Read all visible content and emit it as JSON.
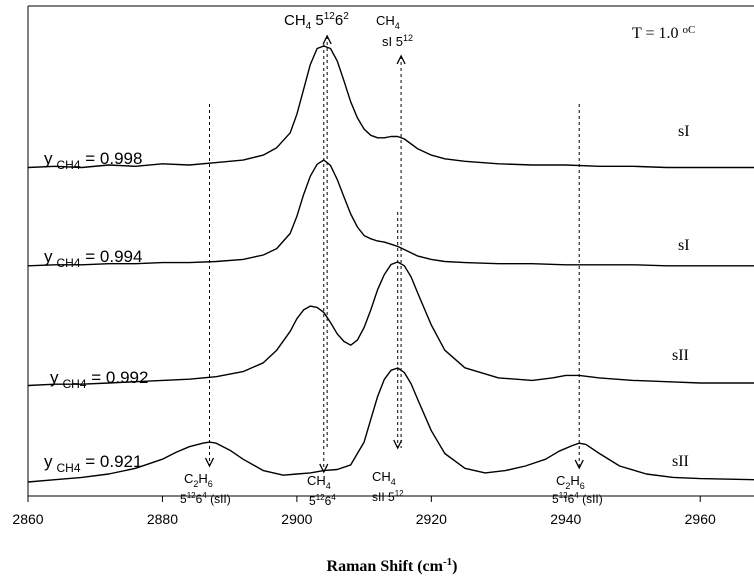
{
  "chart_data": {
    "type": "line",
    "xlabel": "Raman Shift (cm",
    "xlabel_sup": "-1",
    "xlabel_close": ")",
    "x_ticks": [
      "2860",
      "2880",
      "2900",
      "2920",
      "2940",
      "2960"
    ],
    "xlim": [
      2860,
      2968
    ],
    "temperature_label": "T = 1.0 ",
    "temperature_unit": "oC",
    "series": [
      {
        "label_prefix": "y",
        "label_sub": "CH4",
        "label_value": " = 0.998",
        "structure": "sI",
        "x": [
          2860,
          2864,
          2868,
          2872,
          2876,
          2880,
          2884,
          2888,
          2892,
          2895,
          2897,
          2899,
          2900,
          2901,
          2902,
          2903,
          2904,
          2905,
          2906,
          2907,
          2908,
          2909,
          2910,
          2911,
          2912,
          2913,
          2914,
          2915,
          2916,
          2917,
          2918,
          2920,
          2922,
          2925,
          2930,
          2935,
          2940,
          2945,
          2950,
          2955,
          2960,
          2968
        ],
        "y": [
          0.02,
          0.03,
          0.02,
          0.04,
          0.03,
          0.05,
          0.04,
          0.06,
          0.08,
          0.12,
          0.18,
          0.3,
          0.45,
          0.65,
          0.85,
          0.98,
          1.0,
          0.98,
          0.88,
          0.72,
          0.55,
          0.42,
          0.33,
          0.28,
          0.26,
          0.26,
          0.27,
          0.27,
          0.25,
          0.21,
          0.17,
          0.12,
          0.09,
          0.07,
          0.05,
          0.04,
          0.04,
          0.03,
          0.03,
          0.02,
          0.02,
          0.02
        ]
      },
      {
        "label_prefix": "y",
        "label_sub": "CH4",
        "label_value": " = 0.994",
        "structure": "sI",
        "x": [
          2860,
          2864,
          2868,
          2872,
          2876,
          2880,
          2884,
          2888,
          2892,
          2895,
          2897,
          2899,
          2900,
          2901,
          2902,
          2903,
          2904,
          2905,
          2906,
          2907,
          2908,
          2909,
          2910,
          2911,
          2912,
          2913,
          2914,
          2915,
          2916,
          2917,
          2918,
          2920,
          2922,
          2925,
          2930,
          2935,
          2940,
          2945,
          2950,
          2955,
          2960,
          2968
        ],
        "y": [
          0.02,
          0.03,
          0.03,
          0.04,
          0.04,
          0.05,
          0.05,
          0.06,
          0.08,
          0.12,
          0.18,
          0.32,
          0.48,
          0.68,
          0.85,
          0.96,
          1.0,
          0.95,
          0.82,
          0.66,
          0.5,
          0.38,
          0.3,
          0.27,
          0.25,
          0.24,
          0.22,
          0.2,
          0.17,
          0.14,
          0.11,
          0.08,
          0.06,
          0.05,
          0.04,
          0.04,
          0.03,
          0.03,
          0.03,
          0.02,
          0.02,
          0.02
        ]
      },
      {
        "label_prefix": "y",
        "label_sub": "CH4",
        "label_value": " = 0.992",
        "structure": "sII",
        "x": [
          2860,
          2864,
          2868,
          2872,
          2876,
          2880,
          2884,
          2888,
          2892,
          2895,
          2897,
          2899,
          2900,
          2901,
          2902,
          2903,
          2904,
          2905,
          2906,
          2907,
          2908,
          2909,
          2910,
          2911,
          2912,
          2913,
          2914,
          2915,
          2916,
          2917,
          2918,
          2920,
          2922,
          2925,
          2930,
          2935,
          2938,
          2940,
          2942,
          2945,
          2950,
          2955,
          2960,
          2968
        ],
        "y": [
          0.02,
          0.03,
          0.03,
          0.04,
          0.05,
          0.06,
          0.07,
          0.09,
          0.13,
          0.2,
          0.3,
          0.45,
          0.55,
          0.62,
          0.65,
          0.64,
          0.6,
          0.52,
          0.43,
          0.37,
          0.34,
          0.38,
          0.48,
          0.62,
          0.78,
          0.9,
          0.98,
          1.0,
          0.97,
          0.88,
          0.75,
          0.5,
          0.3,
          0.16,
          0.08,
          0.06,
          0.08,
          0.1,
          0.1,
          0.08,
          0.06,
          0.05,
          0.04,
          0.04
        ]
      },
      {
        "label_prefix": "y",
        "label_sub": "CH4",
        "label_value": " = 0.921",
        "structure": "sII",
        "x": [
          2860,
          2864,
          2868,
          2872,
          2876,
          2880,
          2882,
          2884,
          2886,
          2887,
          2888,
          2890,
          2892,
          2895,
          2898,
          2900,
          2902,
          2904,
          2906,
          2908,
          2910,
          2911,
          2912,
          2913,
          2914,
          2915,
          2916,
          2917,
          2918,
          2920,
          2922,
          2925,
          2928,
          2931,
          2934,
          2937,
          2939,
          2941,
          2942,
          2943,
          2945,
          2948,
          2952,
          2956,
          2960,
          2968
        ],
        "y": [
          0.0,
          0.02,
          0.04,
          0.07,
          0.12,
          0.2,
          0.26,
          0.31,
          0.34,
          0.35,
          0.34,
          0.28,
          0.2,
          0.1,
          0.06,
          0.07,
          0.08,
          0.1,
          0.11,
          0.15,
          0.35,
          0.55,
          0.75,
          0.9,
          0.98,
          1.0,
          0.96,
          0.86,
          0.72,
          0.45,
          0.25,
          0.12,
          0.08,
          0.1,
          0.14,
          0.2,
          0.27,
          0.32,
          0.34,
          0.33,
          0.25,
          0.14,
          0.07,
          0.04,
          0.03,
          0.02
        ]
      }
    ],
    "annotations": [
      {
        "line1": "CH",
        "line1_sub": "4",
        "line1_rest": " 5",
        "sup1": "12",
        "mid": "6",
        "sup2": "2",
        "line2": "",
        "line2_sup": "",
        "line2_rest": "",
        "arrow": "up",
        "line_x": 2904.5
      },
      {
        "line1": "CH",
        "line1_sub": "4",
        "line1_rest": "",
        "line2": "sI 5",
        "line2_sup": "12",
        "line2_rest": "",
        "arrow": "up",
        "line_x": 2915.5
      },
      {
        "line1": "C",
        "line1_sub": "2",
        "line1_rest": "H",
        "line1_sub2": "6",
        "line2": "5",
        "line2_sup": "12",
        "line2_mid": "6",
        "line2_sup2": "4",
        "line2_rest": " (sII)",
        "arrow": "down",
        "line_x": 2887
      },
      {
        "line1": "CH",
        "line1_sub": "4",
        "line1_rest": "",
        "line2": "5",
        "line2_sup": "12",
        "line2_mid": "6",
        "line2_sup2": "4",
        "line2_rest": "",
        "arrow": "down",
        "line_x": 2904
      },
      {
        "line1": "CH",
        "line1_sub": "4",
        "line1_rest": "",
        "line2": "sII 5",
        "line2_sup": "12",
        "line2_mid": "",
        "line2_sup2": "",
        "line2_rest": "",
        "arrow": "down",
        "line_x": 2915
      },
      {
        "line1": "C",
        "line1_sub": "2",
        "line1_rest": "H",
        "line1_sub2": "6",
        "line2": "5",
        "line2_sup": "12",
        "line2_mid": "6",
        "line2_sup2": "4",
        "line2_rest": " (sII)",
        "arrow": "down",
        "line_x": 2942
      }
    ]
  }
}
